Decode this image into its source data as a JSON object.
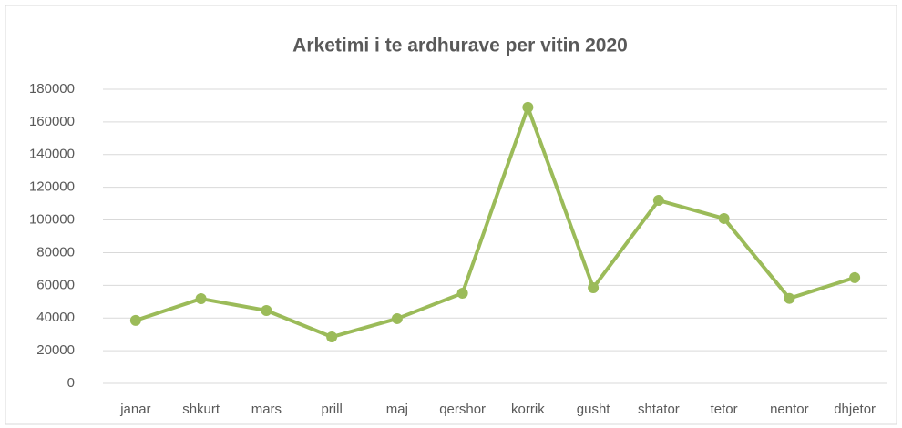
{
  "chart_data": {
    "type": "line",
    "title": "Arketimi i te ardhurave per  vitin 2020",
    "categories": [
      "janar",
      "shkurt",
      "mars",
      "prill",
      "maj",
      "qershor",
      "korrik",
      "gusht",
      "shtator",
      "tetor",
      "nentor",
      "dhjetor"
    ],
    "series": [
      {
        "name": "Arketimi",
        "color": "#9bbb59",
        "values": [
          38500,
          51800,
          44600,
          28400,
          39600,
          55200,
          168900,
          58500,
          112000,
          100900,
          52000,
          64700
        ]
      }
    ],
    "ylim": [
      0,
      180000
    ],
    "yticks": [
      0,
      20000,
      40000,
      60000,
      80000,
      100000,
      120000,
      140000,
      160000,
      180000
    ],
    "grid": true
  }
}
